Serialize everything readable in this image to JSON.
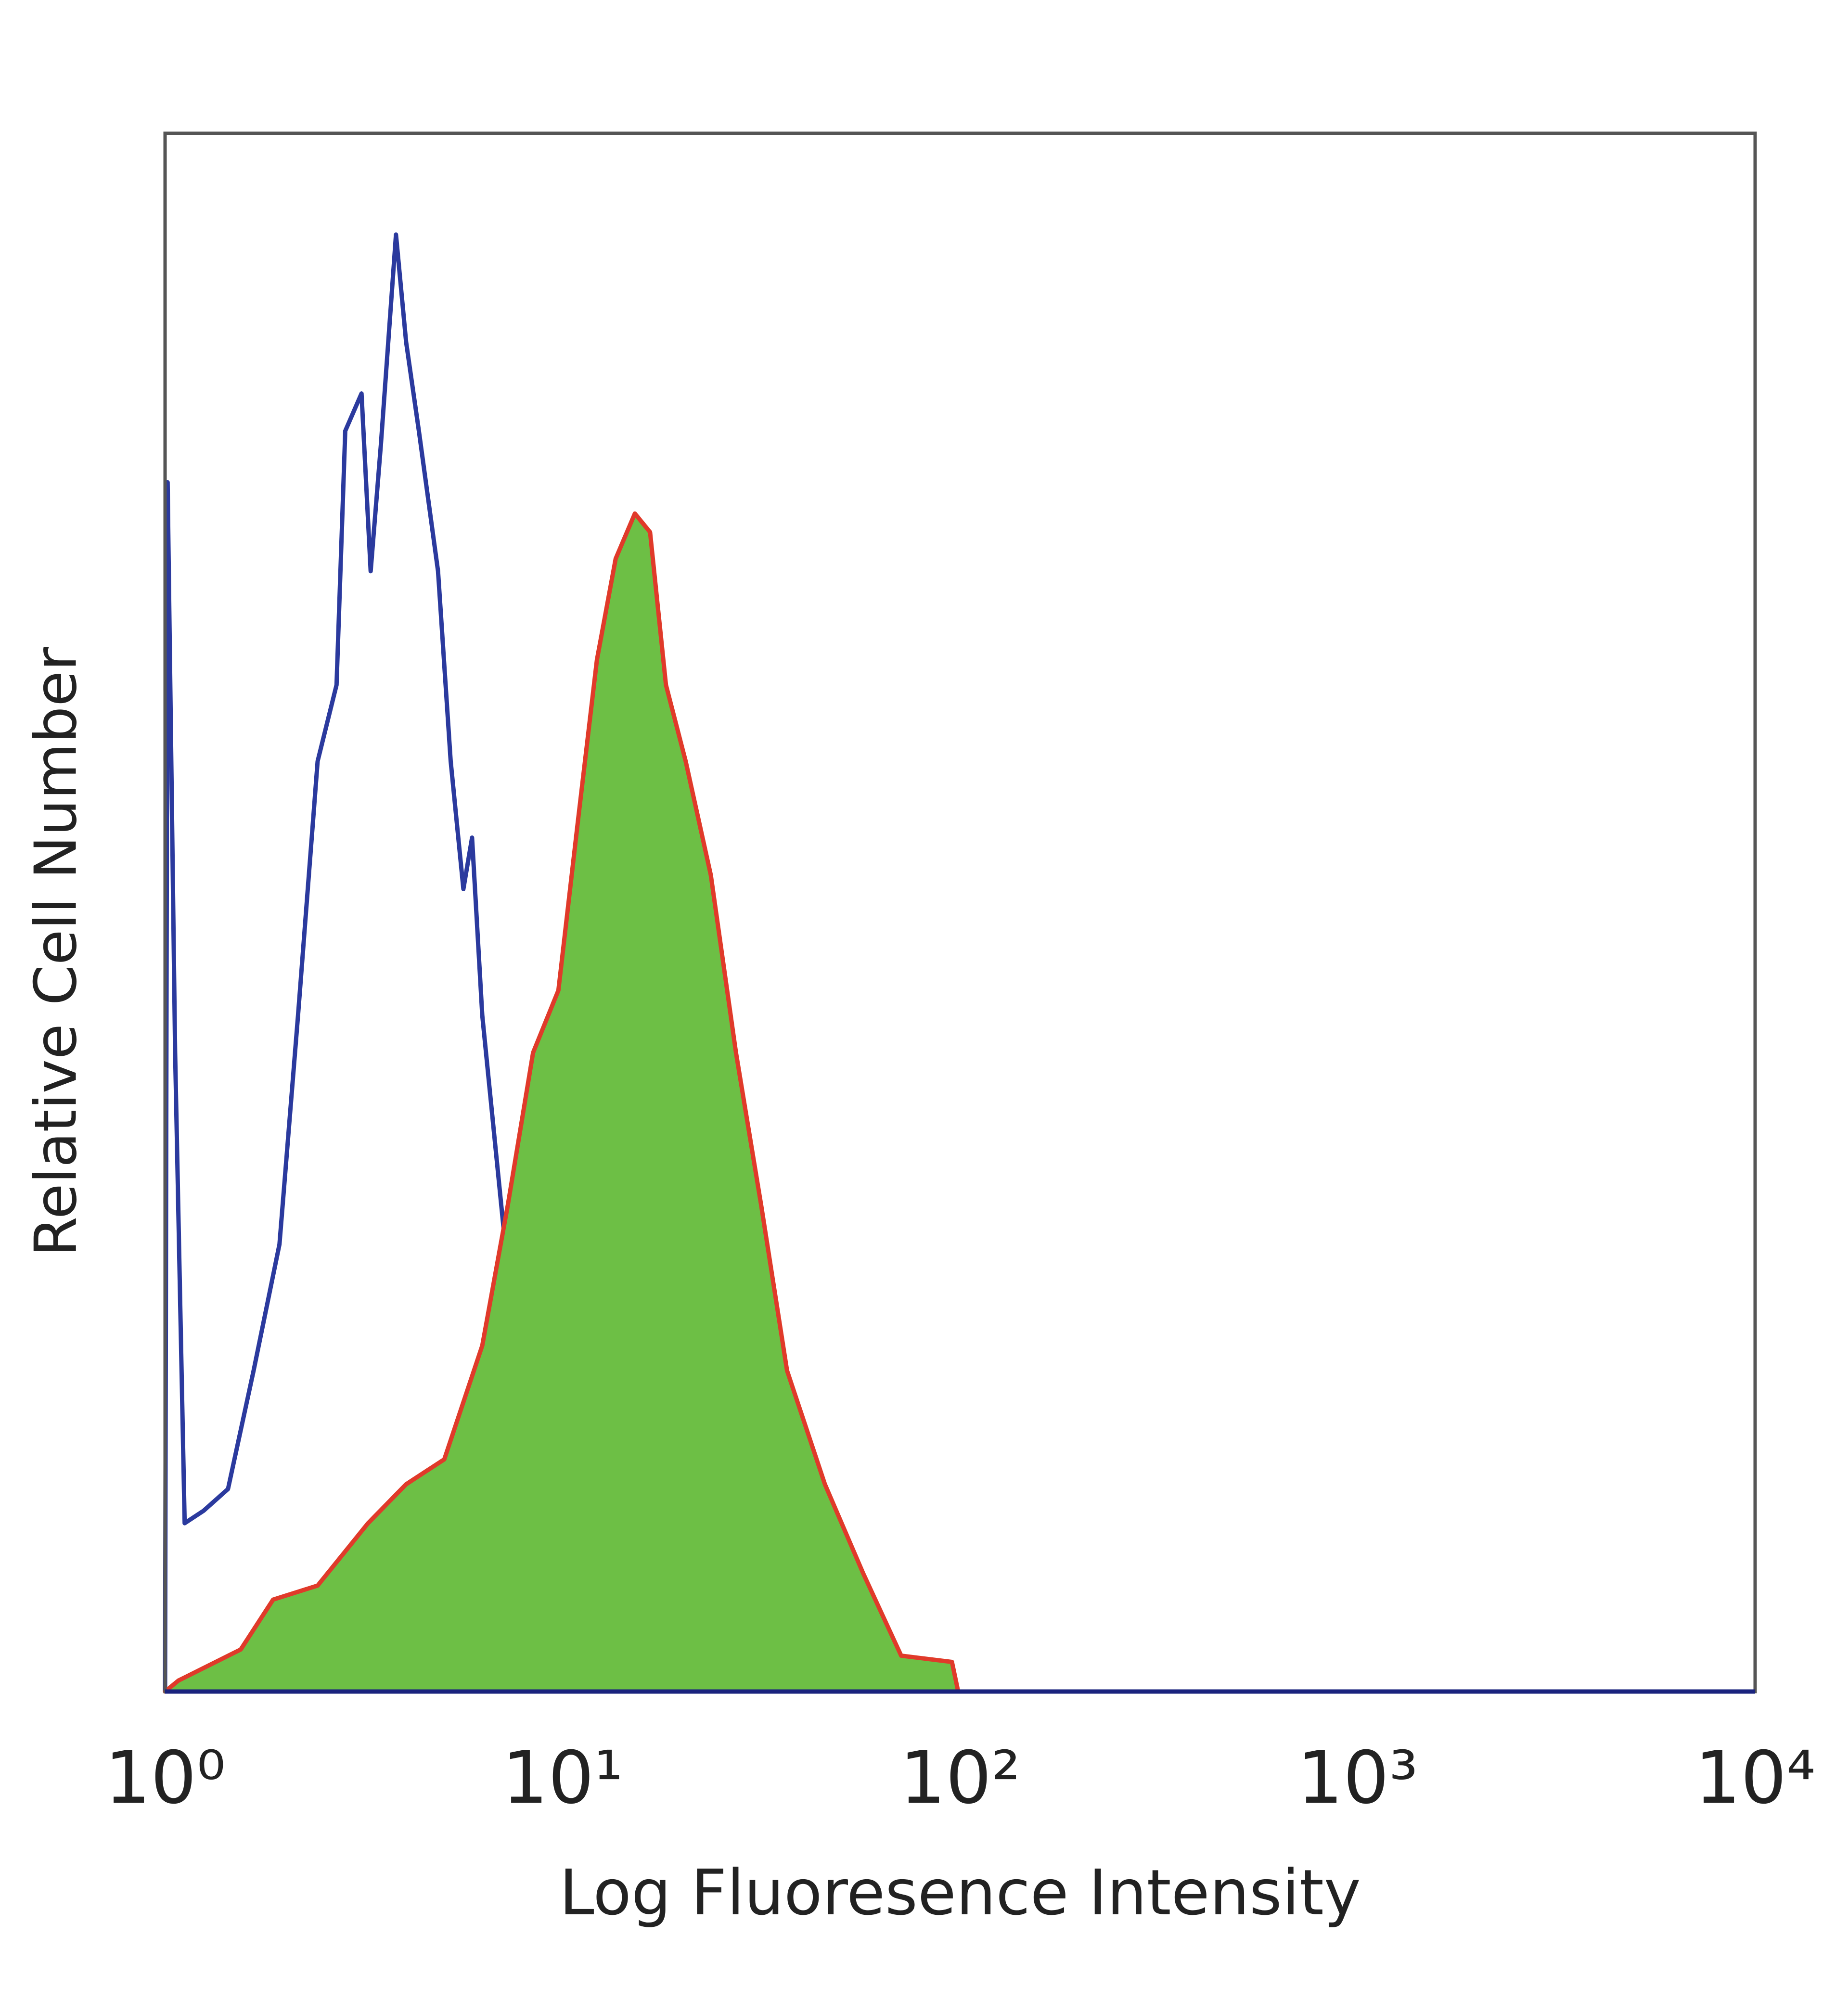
{
  "chart_data": {
    "type": "histogram-overlay",
    "xlabel": "Log Fluoresence Intensity",
    "ylabel": "Relative Cell Number",
    "xscale": "log",
    "xlim": [
      1,
      10000
    ],
    "ylim": [
      0,
      100
    ],
    "xticks": [
      {
        "value": 1,
        "label": "10⁰"
      },
      {
        "value": 10,
        "label": "10¹"
      },
      {
        "value": 100,
        "label": "10²"
      },
      {
        "value": 1000,
        "label": "10³"
      },
      {
        "value": 10000,
        "label": "10⁴"
      }
    ],
    "grid": false,
    "series": [
      {
        "color": "#2b3a9e",
        "filled": false,
        "x": [
          1,
          1.015,
          1.06,
          1.12,
          1.25,
          1.44,
          1.67,
          1.94,
          2.16,
          2.42,
          2.7,
          2.84,
          3.12,
          3.29,
          3.49,
          3.81,
          4.04,
          4.35,
          4.86,
          5.23,
          5.63,
          5.92,
          6.28,
          7.01,
          7.83,
          8.74,
          10.1,
          12.2,
          15.2,
          18.9,
          31.6,
          57,
          66,
          10000
        ],
        "values": [
          0,
          77.6,
          41,
          10.8,
          11.6,
          13,
          20.6,
          28.7,
          43.4,
          59.7,
          64.6,
          80.9,
          83.3,
          71.9,
          80,
          93.5,
          86.6,
          80.9,
          71.9,
          59.7,
          51.5,
          54.8,
          43.4,
          31.2,
          19,
          10.8,
          6.8,
          3.5,
          2.3,
          0.7,
          1.1,
          1.1,
          0,
          0
        ]
      },
      {
        "color": "#e03a2a",
        "fill": "#6dbf45",
        "filled": true,
        "x": [
          1,
          1.08,
          1.55,
          1.87,
          2.42,
          3.24,
          4.04,
          5.04,
          6.28,
          7.28,
          8.43,
          9.76,
          10.9,
          12.2,
          13.6,
          15.2,
          16.6,
          18.2,
          20.4,
          23.6,
          27.3,
          31.6,
          36.7,
          45.7,
          57,
          71.1,
          95.4,
          98.9
        ],
        "values": [
          0,
          0.7,
          2.7,
          5.9,
          6.8,
          10.8,
          13.3,
          14.9,
          22.2,
          31.2,
          41,
          45,
          55.6,
          66.2,
          72.7,
          75.6,
          74.4,
          64.6,
          59.7,
          52.4,
          41,
          31.2,
          20.6,
          13.3,
          7.6,
          2.3,
          1.9,
          0
        ]
      }
    ]
  }
}
